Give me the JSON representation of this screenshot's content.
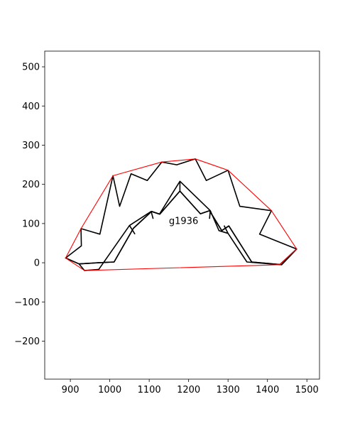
{
  "chart_data": {
    "type": "line",
    "title": "",
    "xlabel": "",
    "ylabel": "",
    "xlim": [
      835,
      1532
    ],
    "ylim": [
      -297,
      540
    ],
    "grid": false,
    "legend": "none",
    "x_ticks": [
      900,
      1000,
      1100,
      1200,
      1300,
      1400,
      1500
    ],
    "y_ticks": [
      -200,
      -100,
      0,
      100,
      200,
      300,
      400,
      500
    ],
    "annotations": [
      {
        "text": "g1936",
        "x": 1150,
        "y": 108
      }
    ],
    "series": [
      {
        "color": "#000000",
        "closed": true,
        "points": [
          [
            888,
            12
          ],
          [
            928,
            43
          ],
          [
            927,
            87
          ],
          [
            975,
            73
          ],
          [
            1008,
            222
          ],
          [
            1025,
            144
          ],
          [
            1054,
            227
          ],
          [
            1095,
            210
          ],
          [
            1132,
            257
          ],
          [
            1170,
            250
          ],
          [
            1217,
            265
          ],
          [
            1245,
            210
          ],
          [
            1300,
            236
          ],
          [
            1330,
            144
          ],
          [
            1410,
            133
          ],
          [
            1380,
            73
          ],
          [
            1474,
            35
          ],
          [
            1436,
            -5
          ],
          [
            1360,
            2
          ],
          [
            1302,
            94
          ],
          [
            1284,
            82
          ],
          [
            1253,
            133
          ],
          [
            1230,
            125
          ],
          [
            1178,
            183
          ],
          [
            1127,
            124
          ],
          [
            1106,
            131
          ],
          [
            1060,
            88
          ],
          [
            1011,
            2
          ],
          [
            970,
            0
          ],
          [
            922,
            -3
          ]
        ]
      },
      {
        "color": "#000000",
        "closed": true,
        "points": [
          [
            888,
            12
          ],
          [
            922,
            -3
          ],
          [
            936,
            -20
          ],
          [
            972,
            -17
          ],
          [
            1050,
            95
          ],
          [
            1105,
            131
          ],
          [
            1126,
            124
          ],
          [
            1178,
            208
          ],
          [
            1255,
            133
          ],
          [
            1277,
            82
          ],
          [
            1300,
            75
          ],
          [
            1348,
            2
          ],
          [
            1431,
            -5
          ],
          [
            1474,
            35
          ],
          [
            1436,
            -5
          ],
          [
            1360,
            2
          ],
          [
            1302,
            94
          ],
          [
            1284,
            82
          ],
          [
            1253,
            133
          ],
          [
            1230,
            125
          ],
          [
            1178,
            183
          ],
          [
            1127,
            124
          ],
          [
            1106,
            131
          ],
          [
            1060,
            88
          ],
          [
            1011,
            2
          ],
          [
            970,
            0
          ],
          [
            922,
            -3
          ]
        ]
      },
      {
        "color": "#000000",
        "closed": false,
        "points": [
          [
            1178,
            208
          ],
          [
            1178,
            183
          ]
        ]
      },
      {
        "color": "#000000",
        "closed": false,
        "points": [
          [
            1105,
            131
          ],
          [
            1110,
            112
          ]
        ]
      },
      {
        "color": "#000000",
        "closed": false,
        "points": [
          [
            1050,
            95
          ],
          [
            1064,
            73
          ]
        ]
      },
      {
        "color": "#000000",
        "closed": false,
        "points": [
          [
            1255,
            133
          ],
          [
            1253,
            112
          ]
        ]
      },
      {
        "color": "#000000",
        "closed": false,
        "points": [
          [
            1300,
            75
          ],
          [
            1290,
            95
          ]
        ]
      },
      {
        "color": "#ff0000",
        "closed": true,
        "points": [
          [
            888,
            12
          ],
          [
            927,
            87
          ],
          [
            1008,
            222
          ],
          [
            1132,
            257
          ],
          [
            1217,
            265
          ],
          [
            1300,
            236
          ],
          [
            1410,
            133
          ],
          [
            1474,
            35
          ],
          [
            1431,
            -5
          ],
          [
            936,
            -20
          ]
        ]
      }
    ]
  }
}
